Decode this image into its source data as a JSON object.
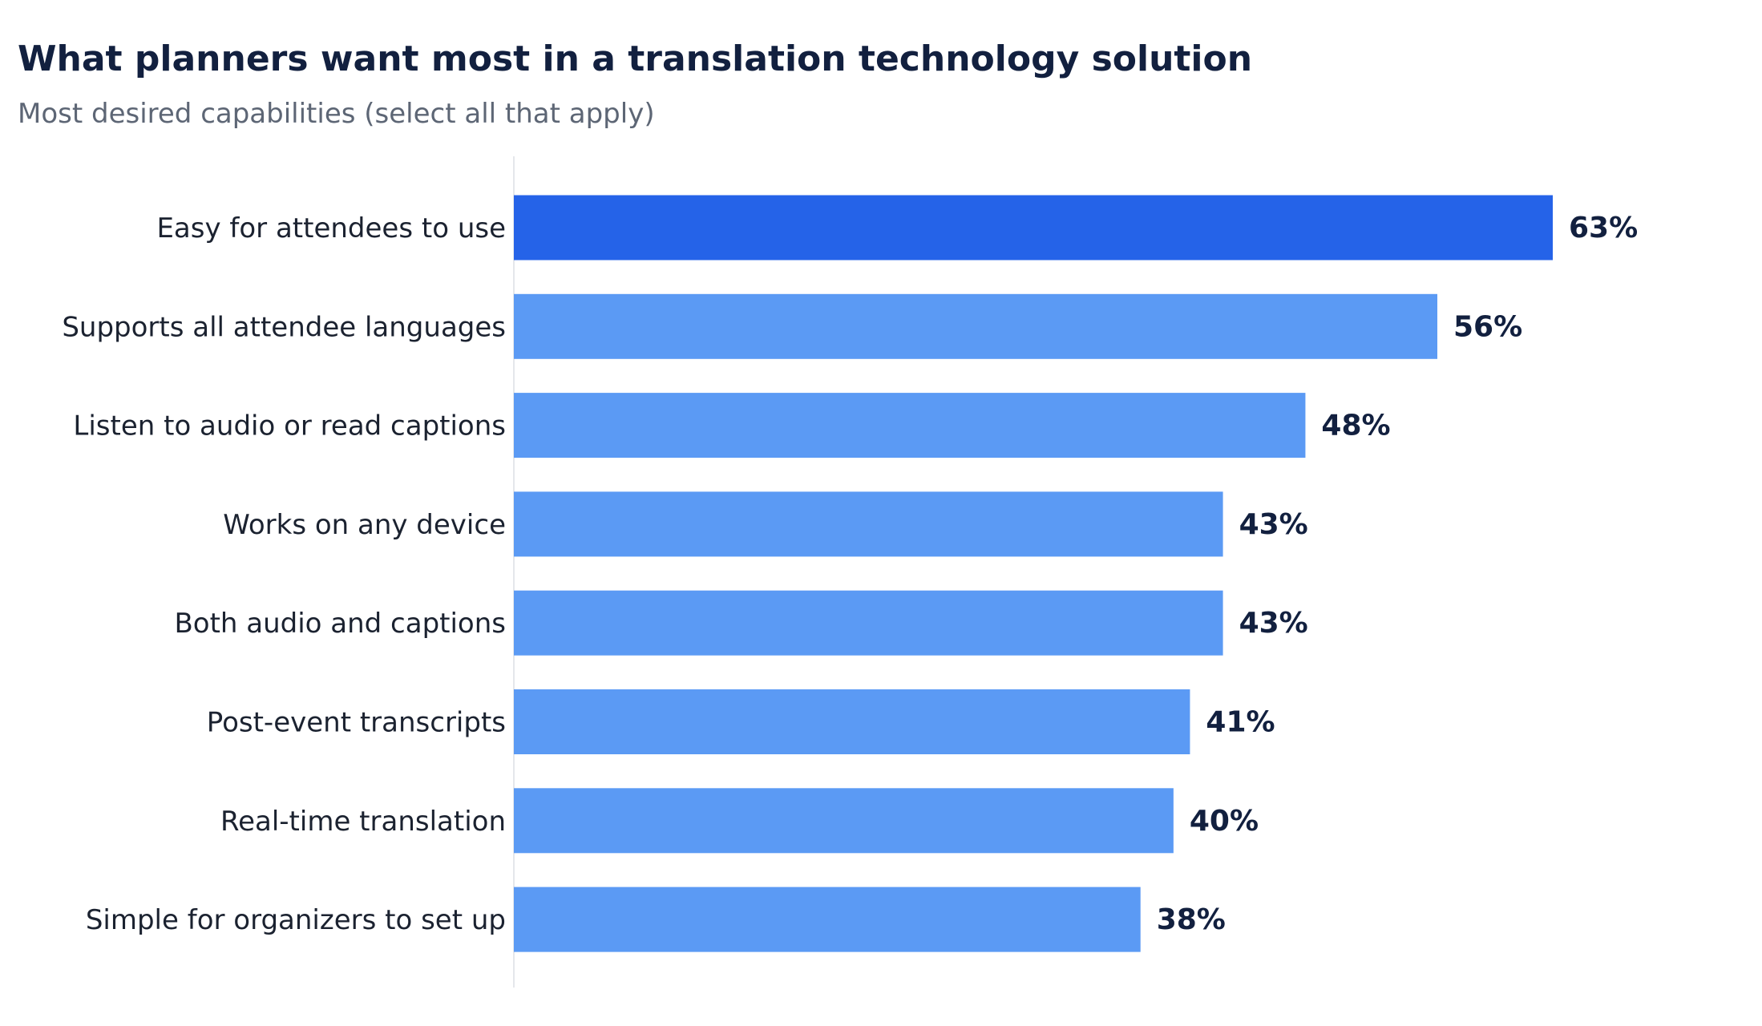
{
  "title": "What planners want most in a translation technology solution",
  "subtitle": "Most desired capabilities (select all that apply)",
  "colors": {
    "highlight": "#2563e8",
    "bar": "#5b9af4",
    "label": "#1b2230",
    "value_label": "#12203f",
    "axis_line": "#e5e7eb"
  },
  "chart_data": {
    "type": "bar",
    "orientation": "horizontal",
    "categories": [
      "Easy for attendees to use",
      "Supports all attendee languages",
      "Listen to audio or read captions",
      "Works on any device",
      "Both audio and captions",
      "Post-event transcripts",
      "Real-time translation",
      "Simple for organizers to set up"
    ],
    "values": [
      63,
      56,
      48,
      43,
      43,
      41,
      40,
      38
    ],
    "value_labels": [
      "63%",
      "56%",
      "48%",
      "43%",
      "43%",
      "41%",
      "40%",
      "38%"
    ],
    "highlight_index": 0,
    "xlim": [
      0,
      76
    ],
    "grid": false,
    "legend": "none"
  }
}
